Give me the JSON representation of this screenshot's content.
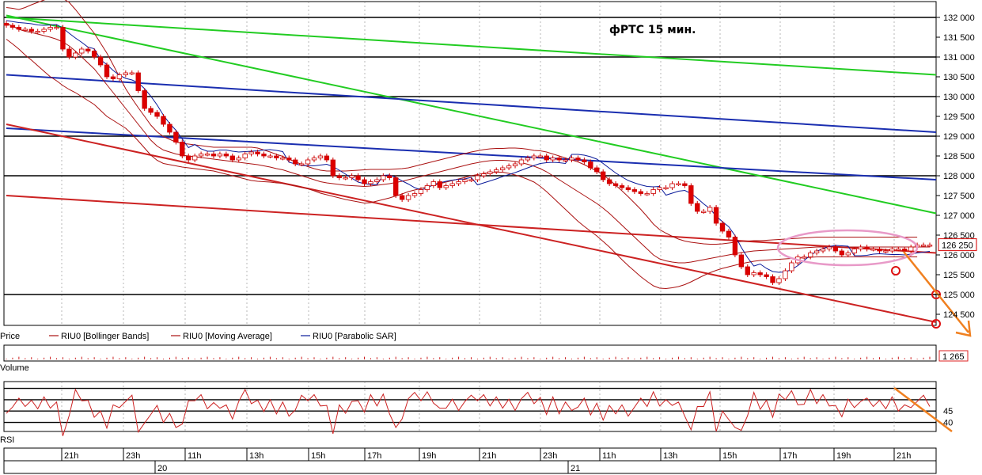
{
  "chart_data": [
    {
      "type": "candlestick",
      "title": "фРТС   15 мин.",
      "ylim": [
        124200,
        132200
      ],
      "y_ticks": [
        132000,
        131500,
        131000,
        130500,
        130000,
        129500,
        129000,
        128500,
        128000,
        127500,
        127000,
        126500,
        126000,
        125500,
        125000,
        124500
      ],
      "y_tick_labels": [
        "132 000",
        "131 500",
        "131 000",
        "130 500",
        "130 000",
        "129 500",
        "129 000",
        "128 500",
        "128 000",
        "127 500",
        "127 000",
        "126 500",
        "126 000",
        "125 500",
        "125 000",
        "124 500"
      ],
      "current_price_label": "126 250",
      "current_price": 126250,
      "bar_count": 148,
      "legend": [
        "Price",
        "RIU0 [Bollinger Bands]",
        "RIU0 [Moving Average]",
        "RIU0 [Parabolic SAR]"
      ],
      "closes_approx": [
        131800,
        131750,
        131700,
        131700,
        131650,
        131650,
        131700,
        131750,
        131750,
        131200,
        131000,
        131100,
        131200,
        131150,
        131000,
        130800,
        130500,
        130450,
        130550,
        130600,
        130600,
        130150,
        129700,
        129600,
        129500,
        129300,
        129100,
        128850,
        128500,
        128400,
        128500,
        128550,
        128550,
        128500,
        128550,
        128500,
        128400,
        128450,
        128550,
        128600,
        128550,
        128500,
        128500,
        128450,
        128450,
        128400,
        128300,
        128300,
        128400,
        128450,
        128500,
        128400,
        128000,
        127950,
        127950,
        128000,
        127900,
        127800,
        127850,
        127900,
        128000,
        127950,
        127500,
        127400,
        127500,
        127550,
        127650,
        127750,
        127850,
        127700,
        127750,
        127800,
        127850,
        127900,
        127900,
        128000,
        128050,
        128100,
        128150,
        128200,
        128250,
        128300,
        128400,
        128450,
        128500,
        128500,
        128400,
        128450,
        128400,
        128400,
        128450,
        128400,
        128350,
        128200,
        128100,
        127900,
        127800,
        127750,
        127700,
        127650,
        127600,
        127550,
        127550,
        127650,
        127700,
        127700,
        127800,
        127800,
        127750,
        127300,
        127100,
        127100,
        127200,
        126800,
        126600,
        126450,
        126000,
        125700,
        125500,
        125550,
        125500,
        125450,
        125300,
        125400,
        125600,
        125800,
        125950,
        125950,
        126050,
        126100,
        126150,
        126200,
        126100,
        126000,
        126050,
        126150,
        126200,
        126150,
        126150,
        126100,
        126100,
        126150,
        126150,
        126100,
        126200,
        126250,
        126250,
        126250
      ],
      "moving_average_approx": [
        131850,
        131780,
        131700,
        131650,
        131620,
        131580,
        131540,
        131500,
        131450,
        131380,
        131280,
        131150,
        131000,
        130850,
        130700,
        130500,
        130300,
        130100,
        129900,
        129700,
        129500,
        129300,
        129100,
        128900,
        128750,
        128650,
        128600,
        128550,
        128520,
        128500,
        128480,
        128460,
        128440,
        128420,
        128400,
        128380,
        128360,
        128340,
        128320,
        128300,
        128280,
        128250,
        128220,
        128180,
        128150,
        128100,
        128050,
        128000,
        127950,
        127900,
        127850,
        127820,
        127800,
        127780,
        127760,
        127750,
        127740,
        127730,
        127740,
        127760,
        127780,
        127800,
        127830,
        127860,
        127900,
        127940,
        127980,
        128020,
        128060,
        128100,
        128140,
        128180,
        128220,
        128260,
        128300,
        128330,
        128360,
        128380,
        128390,
        128390,
        128380,
        128360,
        128330,
        128290,
        128240,
        128180,
        128100,
        128000,
        127900,
        127800,
        127700,
        127600,
        127500,
        127400,
        127300,
        127180,
        127050,
        126900,
        126750,
        126600,
        126450,
        126300,
        126150,
        126000,
        125900,
        125850,
        125820,
        125800,
        125800,
        125820,
        125850,
        125880,
        125910,
        125940,
        125970,
        126000,
        126030,
        126060,
        126080,
        126100,
        126110,
        126120,
        126130,
        126140,
        126150,
        126160,
        126170,
        126180,
        126190,
        126200,
        126200,
        126200,
        126200,
        126200,
        126200,
        126200,
        126200,
        126200,
        126200,
        126200,
        126200,
        126200,
        126200,
        126200,
        126200,
        126200,
        126200,
        126200
      ],
      "bb_width_approx": [
        400,
        450,
        500,
        600,
        700,
        800,
        900,
        1000,
        1050,
        1100,
        1100,
        1050,
        1000,
        950,
        900,
        850,
        800,
        700,
        600,
        500,
        450,
        420,
        400,
        380,
        360,
        340,
        320,
        300,
        300,
        300,
        300,
        300,
        300,
        300,
        320,
        340,
        360,
        380,
        400,
        420,
        420,
        400,
        380,
        360,
        340,
        320,
        300,
        290,
        280,
        280,
        290,
        300,
        320,
        340,
        360,
        380,
        400,
        420,
        420,
        400,
        380,
        360,
        340,
        320,
        300,
        300,
        300,
        300,
        300,
        300,
        300,
        300,
        300,
        300,
        300,
        300,
        300,
        300,
        300,
        300,
        320,
        340,
        360,
        380,
        400,
        450,
        500,
        550,
        600,
        650,
        700,
        750,
        780,
        800,
        820,
        840,
        850,
        860,
        870,
        870,
        860,
        850,
        820,
        780,
        740,
        700,
        650,
        600,
        550,
        500,
        450,
        400,
        360,
        330,
        310,
        300,
        290,
        280,
        270,
        260,
        250,
        250,
        250,
        250,
        250,
        250,
        250,
        250,
        250,
        250,
        250,
        250,
        250,
        250,
        250,
        250,
        250,
        250,
        250,
        250,
        250,
        250,
        250,
        250,
        250,
        250
      ],
      "trend_lines": [
        {
          "color": "#22cc22",
          "from": [
            0,
            132000
          ],
          "to": [
            147,
            130550
          ]
        },
        {
          "color": "#22cc22",
          "from": [
            0,
            132050
          ],
          "to": [
            147,
            127050
          ]
        },
        {
          "color": "#1a2eb0",
          "from": [
            0,
            130550
          ],
          "to": [
            147,
            129100
          ]
        },
        {
          "color": "#1a2eb0",
          "from": [
            0,
            129200
          ],
          "to": [
            147,
            127900
          ]
        },
        {
          "color": "#cc2222",
          "from": [
            0,
            127500
          ],
          "to": [
            147,
            126050
          ]
        },
        {
          "color": "#cc2222",
          "from": [
            0,
            129300
          ],
          "to": [
            147,
            124300
          ]
        }
      ],
      "horizontal_levels": [
        132000,
        131000,
        130000,
        129000,
        128000,
        125000
      ],
      "colors": {
        "up": "#ffffff",
        "down": "#dd0000",
        "outline": "#cc0000",
        "bollinger": "#aa1111",
        "sar": "#0a1a9a",
        "highlight": "#e89ac8",
        "arrow": "#f08020"
      }
    },
    {
      "type": "bar",
      "label": "Volume",
      "current_value_label": "1 265"
    },
    {
      "type": "line",
      "label": "RSI",
      "ylim": [
        36,
        58
      ],
      "y_ticks": [
        45,
        40
      ],
      "y_tick_labels": [
        "45",
        "40"
      ],
      "levels": [
        55,
        50,
        45,
        40
      ]
    }
  ],
  "x_axis": {
    "time_ticks": [
      "21h",
      "23h",
      "11h",
      "13h",
      "15h",
      "17h",
      "19h",
      "21h",
      "23h",
      "11h",
      "13h",
      "15h",
      "17h",
      "19h",
      "21h"
    ],
    "day_labels": [
      "20",
      "21"
    ]
  }
}
